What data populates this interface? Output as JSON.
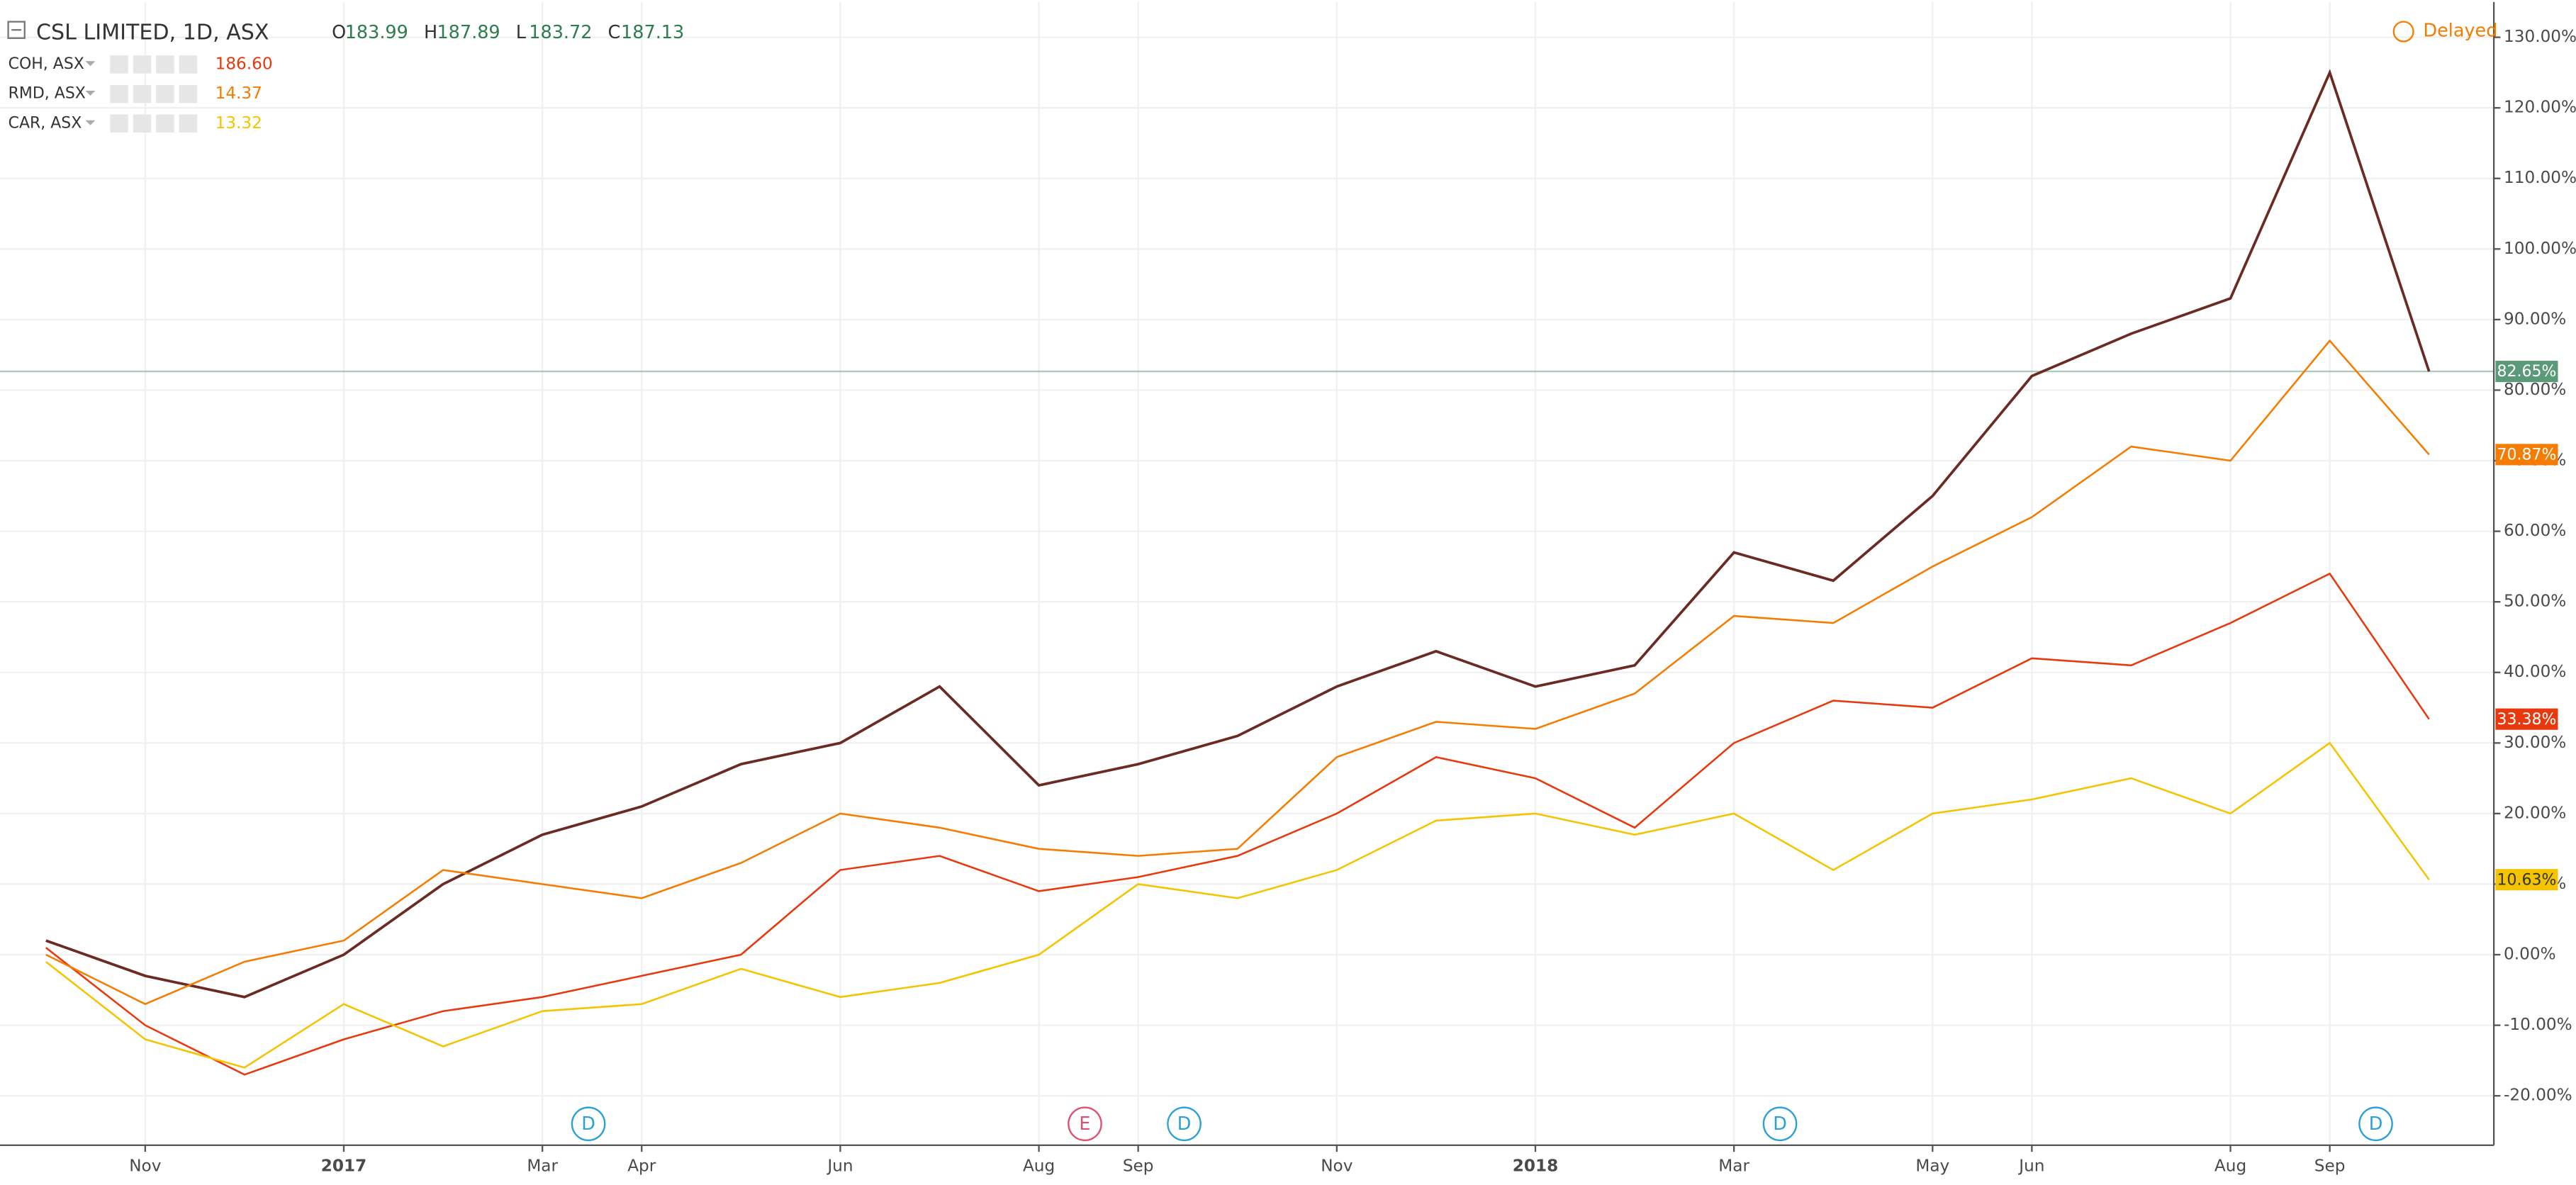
{
  "chart_data": {
    "type": "line",
    "title": "CSL LIMITED, 1D, ASX",
    "ohlc": [
      {
        "label": "O",
        "value": "183.99"
      },
      {
        "label": "H",
        "value": "187.89"
      },
      {
        "label": "L",
        "value": "183.72"
      },
      {
        "label": "C",
        "value": "187.13"
      }
    ],
    "status": "Delayed",
    "x": [
      "2016-10",
      "2016-11",
      "2016-12",
      "2017-01",
      "2017-02",
      "2017-03",
      "2017-04",
      "2017-05",
      "2017-06",
      "2017-07",
      "2017-08",
      "2017-09",
      "2017-10",
      "2017-11",
      "2017-12",
      "2018-01",
      "2018-02",
      "2018-03",
      "2018-04",
      "2018-05",
      "2018-06",
      "2018-07",
      "2018-08",
      "2018-09",
      "2018-10"
    ],
    "xlim": [
      "2016-09",
      "2018-11"
    ],
    "xticks": [
      {
        "value": "2016-11",
        "label": "Nov"
      },
      {
        "value": "2017-01",
        "label": "2017"
      },
      {
        "value": "2017-03",
        "label": "Mar"
      },
      {
        "value": "2017-04",
        "label": "Apr"
      },
      {
        "value": "2017-06",
        "label": "Jun"
      },
      {
        "value": "2017-08",
        "label": "Aug"
      },
      {
        "value": "2017-09",
        "label": "Sep"
      },
      {
        "value": "2017-11",
        "label": "Nov"
      },
      {
        "value": "2018-01",
        "label": "2018"
      },
      {
        "value": "2018-03",
        "label": "Mar"
      },
      {
        "value": "2018-05",
        "label": "May"
      },
      {
        "value": "2018-06",
        "label": "Jun"
      },
      {
        "value": "2018-08",
        "label": "Aug"
      },
      {
        "value": "2018-09",
        "label": "Sep"
      }
    ],
    "ylim": [
      -27,
      135
    ],
    "yticks": [
      {
        "value": -20,
        "label": "-20.00%"
      },
      {
        "value": -10,
        "label": "-10.00%"
      },
      {
        "value": 0,
        "label": "0.00%"
      },
      {
        "value": 10,
        "label": "10.00%"
      },
      {
        "value": 20,
        "label": "20.00%"
      },
      {
        "value": 30,
        "label": "30.00%"
      },
      {
        "value": 40,
        "label": "40.00%"
      },
      {
        "value": 50,
        "label": "50.00%"
      },
      {
        "value": 60,
        "label": "60.00%"
      },
      {
        "value": 70,
        "label": "70.00%"
      },
      {
        "value": 80,
        "label": "80.00%"
      },
      {
        "value": 90,
        "label": "90.00%"
      },
      {
        "value": 100,
        "label": "100.00%"
      },
      {
        "value": 110,
        "label": "110.00%"
      },
      {
        "value": 120,
        "label": "120.00%"
      },
      {
        "value": 130,
        "label": "130.00%"
      }
    ],
    "grid": true,
    "series": [
      {
        "name": "CSL LIMITED",
        "color": "#6b2a22",
        "badge": "#5b9a78",
        "values": [
          2,
          -3,
          -6,
          0,
          10,
          17,
          21,
          27,
          30,
          38,
          24,
          27,
          31,
          38,
          43,
          38,
          41,
          57,
          53,
          65,
          82,
          88,
          93,
          125,
          82.65
        ],
        "value_labels": [
          null,
          null,
          null,
          null,
          null,
          null,
          null,
          null,
          null,
          null,
          null,
          null,
          null,
          null,
          null,
          null,
          null,
          null,
          null,
          null,
          null,
          null,
          null,
          null,
          "82.65%"
        ]
      },
      {
        "name": "COH, ASX",
        "price": "186.60",
        "color": "#e8380d",
        "badge": "#e8380d",
        "values": [
          1,
          -10,
          -17,
          -12,
          -8,
          -6,
          -3,
          0,
          12,
          14,
          9,
          11,
          14,
          20,
          28,
          25,
          18,
          30,
          36,
          35,
          42,
          41,
          47,
          54,
          33.38
        ],
        "value_labels": [
          null,
          null,
          null,
          null,
          null,
          null,
          null,
          null,
          null,
          null,
          null,
          null,
          null,
          null,
          null,
          null,
          null,
          null,
          null,
          null,
          null,
          null,
          null,
          null,
          "33.38%"
        ]
      },
      {
        "name": "RMD, ASX",
        "price": "14.37",
        "color": "#f57c00",
        "badge": "#f57c00",
        "values": [
          0,
          -7,
          -1,
          2,
          12,
          10,
          8,
          13,
          20,
          18,
          15,
          14,
          15,
          28,
          33,
          32,
          37,
          48,
          47,
          55,
          62,
          72,
          70,
          87,
          70.87
        ],
        "value_labels": [
          null,
          null,
          null,
          null,
          null,
          null,
          null,
          null,
          null,
          null,
          null,
          null,
          null,
          null,
          null,
          null,
          null,
          null,
          null,
          null,
          null,
          null,
          null,
          null,
          "70.87%"
        ]
      },
      {
        "name": "CAR, ASX",
        "price": "13.32",
        "color": "#f5c400",
        "badge": "#f5c400",
        "values": [
          -1,
          -12,
          -16,
          -7,
          -13,
          -8,
          -7,
          -2,
          -6,
          -4,
          0,
          10,
          8,
          12,
          19,
          20,
          17,
          20,
          12,
          20,
          22,
          25,
          20,
          30,
          10.63
        ],
        "value_labels": [
          null,
          null,
          null,
          null,
          null,
          null,
          null,
          null,
          null,
          null,
          null,
          null,
          null,
          null,
          null,
          null,
          null,
          null,
          null,
          null,
          null,
          null,
          null,
          null,
          "10.63%"
        ]
      }
    ],
    "events": [
      {
        "label": "D",
        "x": "2017-03",
        "color": "#2aa0d8"
      },
      {
        "label": "E",
        "x": "2017-08",
        "color": "#e0506e"
      },
      {
        "label": "D",
        "x": "2017-09",
        "color": "#2aa0d8"
      },
      {
        "label": "D",
        "x": "2018-03",
        "color": "#2aa0d8"
      },
      {
        "label": "D",
        "x": "2018-09",
        "color": "#2aa0d8"
      }
    ]
  }
}
